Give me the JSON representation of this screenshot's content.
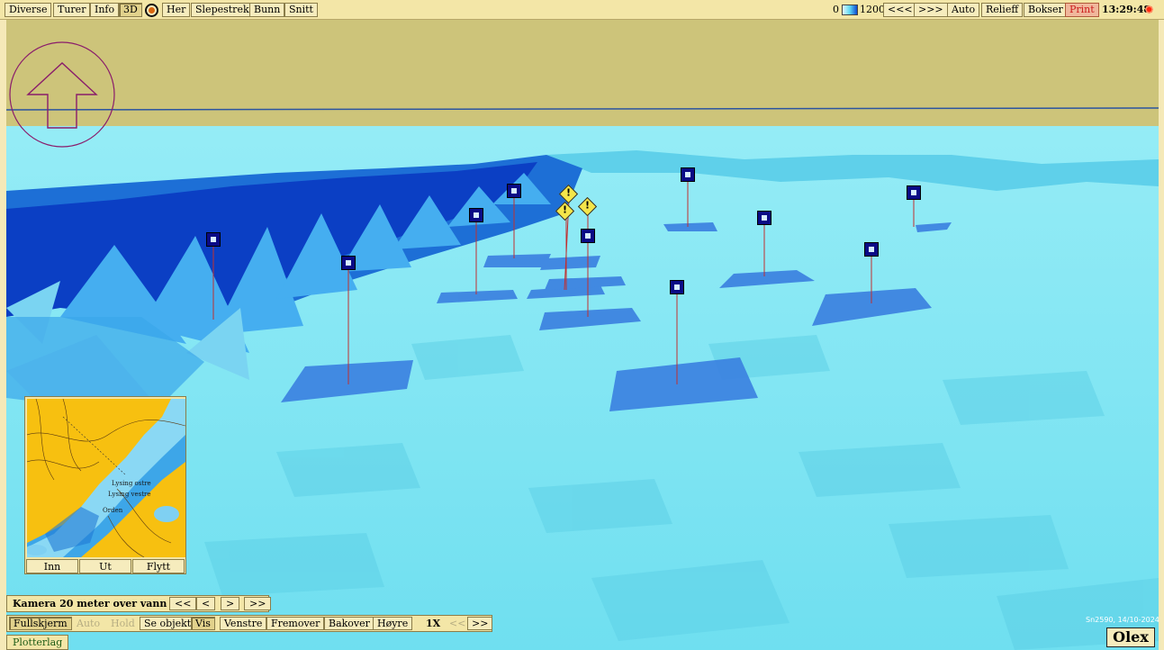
{
  "toolbar_left": [
    {
      "label": "Diverse"
    },
    {
      "label": "Turer"
    },
    {
      "label": "Info"
    },
    {
      "label": "3D",
      "active": true
    },
    {
      "label": "Her"
    },
    {
      "label": "Slepestrek"
    },
    {
      "label": "Bunn"
    },
    {
      "label": "Snitt"
    }
  ],
  "toolbar_right": {
    "depth_min": "0",
    "depth_max": "1200",
    "prev": "<<<",
    "next": ">>>",
    "auto": "Auto",
    "relieff": "Relieff",
    "bokser": "Bokser",
    "print": "Print",
    "clock": "13:29:48"
  },
  "icons": {
    "target": "target-icon",
    "sun": "sun-icon",
    "north_arrow": "north-arrow-icon",
    "warning": "warning-icon",
    "marker": "mark-icon"
  },
  "colors": {
    "toolbar_bg": "#f3e6a7",
    "sky": "#cdc47a",
    "water": "#7fe6f4",
    "deep": "#0b3fc4",
    "print_text": "#cc1d1d"
  },
  "minimap": {
    "labels": [
      "Lysing ostre",
      "Lysing vestre",
      "Orden"
    ],
    "buttons": [
      "Inn",
      "Ut",
      "Flytt"
    ]
  },
  "camera_bar": {
    "label": "Kamera 20 meter over vann",
    "buttons": [
      "<<",
      "<",
      ">",
      ">>"
    ]
  },
  "nav_bar": [
    {
      "label": "Fullskjerm",
      "state": "active"
    },
    {
      "label": "Auto",
      "state": "disabled"
    },
    {
      "label": "Hold",
      "state": "disabled"
    },
    {
      "label": "Se objekt",
      "state": "normal"
    },
    {
      "label": "Vis",
      "state": "active"
    },
    {
      "label": "Venstre",
      "state": "normal"
    },
    {
      "label": "Fremover",
      "state": "normal"
    },
    {
      "label": "Bakover",
      "state": "normal"
    },
    {
      "label": "Høyre",
      "state": "normal"
    },
    {
      "label": "1X",
      "state": "plain"
    },
    {
      "label": "<<",
      "state": "disabled"
    },
    {
      "label": ">>",
      "state": "normal"
    }
  ],
  "plotterlag": "Plotterlag",
  "serial": "Sn2590, 14/10-2024",
  "logo": "Olex"
}
